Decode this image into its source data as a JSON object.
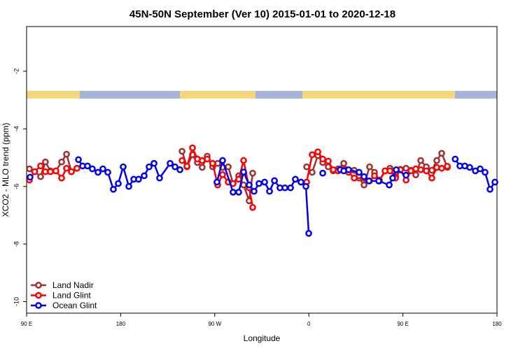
{
  "chart_data": {
    "type": "line",
    "title": "45N-50N September (Ver 10)   2015-01-01 to 2020-12-18",
    "x_label": "Longitude",
    "y_label": "XCO2 - MLO trend (ppm)",
    "xlim": [
      90,
      540
    ],
    "ylim": [
      -10.4,
      -0.45
    ],
    "xticks": [
      {
        "value": 90,
        "label": "90 E"
      },
      180,
      {
        "value": 270,
        "label": "90 W"
      },
      {
        "value": 360,
        "label": "0"
      },
      {
        "value": 450,
        "label": "90 E"
      },
      180
    ],
    "yticks": [
      -2,
      -4,
      -6,
      -8,
      -10
    ],
    "legend": "bottom-left",
    "series": [
      {
        "name": "Land Nadir",
        "color": "#a03030",
        "x": [
          92.7,
          97.7,
          103.4,
          108,
          112.8,
          118,
          123.5,
          128.2,
          132.9,
          138.2,
          null,
          238.7,
          243.4,
          248.7,
          253.4,
          258,
          262.8,
          268,
          272.8,
          277.5,
          282.9,
          287.5,
          292.9,
          297.6,
          302.9,
          306.3,
          null,
          357.9,
          363.2,
          368.6,
          373.3,
          378.6,
          383.3,
          388,
          393.4,
          398,
          403.4,
          408,
          412.8,
          418.1,
          422.8,
          427.5,
          432.9,
          437.6,
          443,
          447.6,
          453,
          457.6,
          462.3,
          467,
          472.4,
          477.7,
          482.4,
          487.1,
          492.5
        ],
        "values": [
          -5.39,
          -5.49,
          -5.66,
          -5.15,
          -5.46,
          -5.46,
          -5.15,
          -4.88,
          -5.49,
          -5.37,
          null,
          -4.78,
          -5.32,
          -4.9,
          -5.17,
          -5.34,
          -4.95,
          -5.32,
          -5.2,
          -5.34,
          -5.32,
          -5.9,
          -5.63,
          -5.95,
          -6.5,
          -5.54,
          null,
          -5.32,
          -5.51,
          -4.93,
          -5.17,
          -5.32,
          -5.46,
          -5.39,
          -5.2,
          -5.46,
          -5.44,
          -5.71,
          -5.95,
          -5.32,
          -5.51,
          -5.78,
          -5.46,
          -5.37,
          -5.66,
          -5.41,
          -5.37,
          -5.44,
          -5.6,
          -5.1,
          -5.32,
          -5.44,
          -5.1,
          -4.85,
          -5.34
        ]
      },
      {
        "name": "Land Glint",
        "color": "#ff0000",
        "x": [
          92.7,
          97.7,
          103.4,
          108,
          112.8,
          118,
          123.5,
          128.2,
          132.9,
          138.2,
          null,
          238.7,
          243.4,
          248.7,
          253.4,
          258,
          262.8,
          268,
          272.8,
          277.5,
          282.9,
          287.5,
          292.9,
          297.6,
          302.9,
          306.3,
          null,
          357.9,
          363.2,
          368.6,
          373.3,
          378.6,
          383.3,
          388,
          393.4,
          398,
          403.4,
          408,
          412.8,
          418.1,
          422.8,
          427.5,
          432.9,
          437.6,
          443,
          447.6,
          453,
          457.6,
          462.3,
          467,
          472.4,
          477.7,
          482.4,
          487.1,
          492.5
        ],
        "values": [
          -5.78,
          -5.49,
          -5.29,
          -5.49,
          -5.49,
          -5.46,
          -5.71,
          -5.37,
          -5.49,
          -5.37,
          null,
          -5.1,
          -5.3,
          -4.66,
          -5.05,
          -5.1,
          -5.05,
          -5.2,
          -5.95,
          -5.59,
          -5.85,
          -5.9,
          -5.75,
          -5.1,
          -6.05,
          -6.73,
          null,
          -5.85,
          -4.9,
          -4.8,
          -5.05,
          -5.12,
          -5.42,
          -5.46,
          -5.42,
          -5.51,
          -5.71,
          -5.63,
          -5.71,
          -5.81,
          -5.63,
          -5.81,
          -5.46,
          -5.46,
          -5.71,
          -5.42,
          -5.78,
          -5.46,
          -5.39,
          -5.42,
          -5.46,
          -5.71,
          -5.34,
          -5.37,
          -5.3
        ]
      },
      {
        "name": "Ocean Glint",
        "color": "#0000ee",
        "x": [
          93.3,
          null,
          139.6,
          143.6,
          148.3,
          152.9,
          158.3,
          163,
          167.7,
          173,
          177.7,
          182.4,
          187.8,
          192.5,
          197.1,
          202.5,
          207.2,
          211.9,
          217.2,
          227.3,
          232,
          236.7,
          null,
          272.1,
          277.5,
          287.5,
          292.9,
          297.6,
          302.9,
          307.6,
          312.3,
          317.7,
          322.4,
          327.1,
          332.4,
          337.1,
          342.5,
          347.1,
          352.5,
          357.2,
          359.9,
          null,
          373.3,
          null,
          390,
          393.4,
          398,
          408.1,
          412.8,
          417.5,
          426.8,
          436.9,
          440.2,
          443.6,
          453,
          null,
          500,
          504.5,
          509.2,
          513.9,
          519.3,
          523.9,
          528.6,
          533.3,
          538
        ],
        "values": [
          -5.68,
          null,
          -5.07,
          -5.29,
          -5.29,
          -5.39,
          -5.51,
          -5.39,
          -5.51,
          -6.1,
          -5.9,
          -5.32,
          -6.0,
          -5.75,
          -5.75,
          -5.63,
          -5.32,
          -5.2,
          -5.71,
          -5.2,
          -5.32,
          -5.42,
          null,
          -5.85,
          -5.1,
          -6.2,
          -6.2,
          -5.5,
          -5.95,
          -6.17,
          -5.9,
          -5.85,
          -6.17,
          -5.8,
          -6.05,
          -6.05,
          -6.05,
          -5.75,
          -5.85,
          -6.0,
          -7.63,
          null,
          -5.54,
          null,
          -5.42,
          -5.46,
          -5.42,
          -5.51,
          -5.66,
          -5.81,
          -5.81,
          -5.95,
          -5.71,
          -5.42,
          -5.61,
          null,
          -5.05,
          -5.29,
          -5.29,
          -5.34,
          -5.46,
          -5.39,
          -5.51,
          -6.1,
          -5.85
        ]
      }
    ]
  }
}
